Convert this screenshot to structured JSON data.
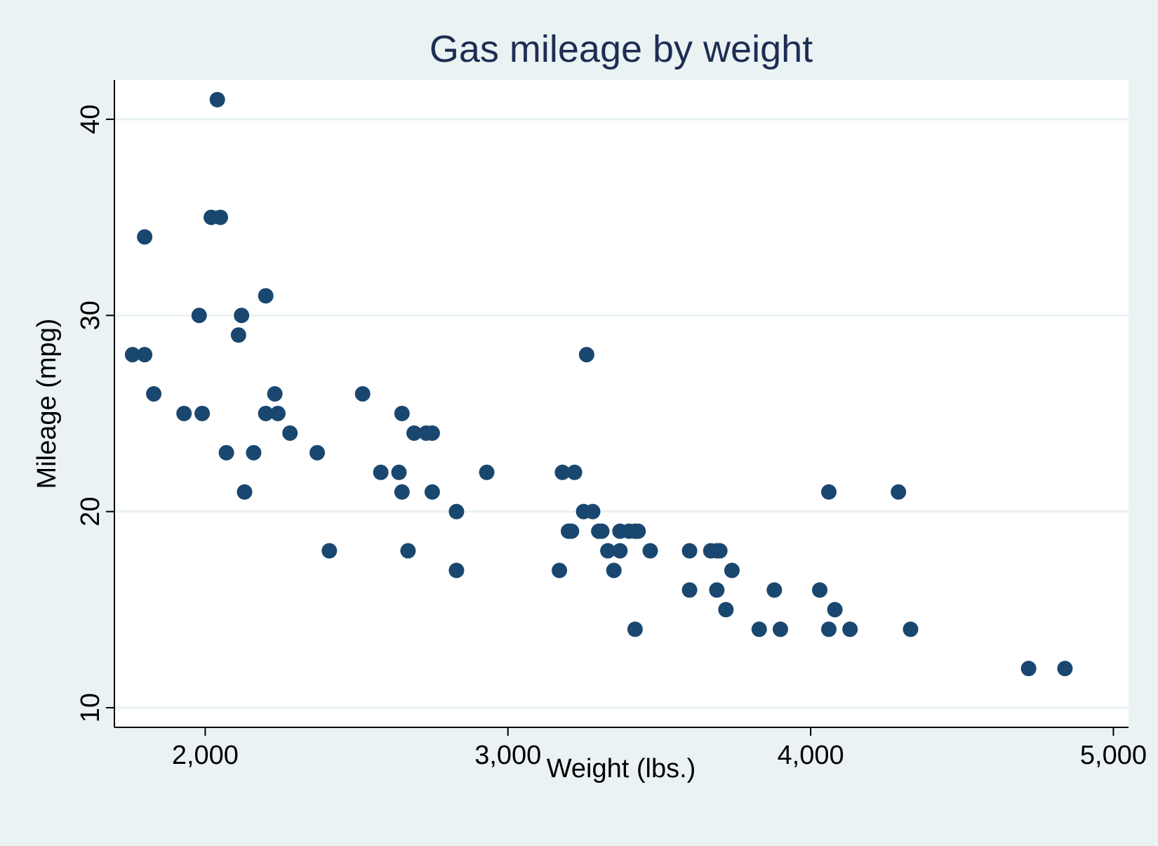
{
  "chart_data": {
    "type": "scatter",
    "title": "Gas mileage by weight",
    "xlabel": "Weight (lbs.)",
    "ylabel": "Mileage (mpg)",
    "xlim": [
      1700,
      5050
    ],
    "ylim": [
      9,
      42
    ],
    "xticks": [
      2000,
      3000,
      4000,
      5000
    ],
    "xtick_labels": [
      "2,000",
      "3,000",
      "4,000",
      "5,000"
    ],
    "yticks": [
      10,
      20,
      30,
      40
    ],
    "ytick_labels": [
      "10",
      "20",
      "30",
      "40"
    ],
    "grid": "horizontal",
    "legend": "none",
    "colors": {
      "background": "#eaf2f3",
      "plot_area": "#ffffff",
      "marker": "#1a476f",
      "title": "#1e2d53",
      "gridline": "#eaf2f3",
      "axis": "#000000"
    },
    "points": [
      {
        "x": 1760,
        "y": 28
      },
      {
        "x": 1800,
        "y": 28
      },
      {
        "x": 1800,
        "y": 34
      },
      {
        "x": 1830,
        "y": 26
      },
      {
        "x": 1930,
        "y": 25
      },
      {
        "x": 1980,
        "y": 30
      },
      {
        "x": 1990,
        "y": 25
      },
      {
        "x": 2020,
        "y": 35
      },
      {
        "x": 2040,
        "y": 41
      },
      {
        "x": 2050,
        "y": 35
      },
      {
        "x": 2070,
        "y": 23
      },
      {
        "x": 2110,
        "y": 29
      },
      {
        "x": 2120,
        "y": 30
      },
      {
        "x": 2130,
        "y": 21
      },
      {
        "x": 2160,
        "y": 23
      },
      {
        "x": 2200,
        "y": 25
      },
      {
        "x": 2200,
        "y": 31
      },
      {
        "x": 2230,
        "y": 26
      },
      {
        "x": 2240,
        "y": 25
      },
      {
        "x": 2280,
        "y": 24
      },
      {
        "x": 2370,
        "y": 23
      },
      {
        "x": 2410,
        "y": 18
      },
      {
        "x": 2520,
        "y": 26
      },
      {
        "x": 2580,
        "y": 22
      },
      {
        "x": 2640,
        "y": 22
      },
      {
        "x": 2650,
        "y": 21
      },
      {
        "x": 2650,
        "y": 25
      },
      {
        "x": 2670,
        "y": 18
      },
      {
        "x": 2690,
        "y": 24
      },
      {
        "x": 2730,
        "y": 24
      },
      {
        "x": 2750,
        "y": 24
      },
      {
        "x": 2750,
        "y": 21
      },
      {
        "x": 2830,
        "y": 20
      },
      {
        "x": 2830,
        "y": 17
      },
      {
        "x": 2930,
        "y": 22
      },
      {
        "x": 3170,
        "y": 17
      },
      {
        "x": 3180,
        "y": 22
      },
      {
        "x": 3200,
        "y": 19
      },
      {
        "x": 3210,
        "y": 19
      },
      {
        "x": 3220,
        "y": 22
      },
      {
        "x": 3250,
        "y": 20
      },
      {
        "x": 3260,
        "y": 28
      },
      {
        "x": 3280,
        "y": 20
      },
      {
        "x": 3300,
        "y": 19
      },
      {
        "x": 3310,
        "y": 19
      },
      {
        "x": 3330,
        "y": 18
      },
      {
        "x": 3350,
        "y": 17
      },
      {
        "x": 3370,
        "y": 19
      },
      {
        "x": 3370,
        "y": 18
      },
      {
        "x": 3400,
        "y": 19
      },
      {
        "x": 3420,
        "y": 19
      },
      {
        "x": 3420,
        "y": 14
      },
      {
        "x": 3430,
        "y": 19
      },
      {
        "x": 3470,
        "y": 18
      },
      {
        "x": 3600,
        "y": 18
      },
      {
        "x": 3600,
        "y": 16
      },
      {
        "x": 3670,
        "y": 18
      },
      {
        "x": 3690,
        "y": 16
      },
      {
        "x": 3690,
        "y": 18
      },
      {
        "x": 3700,
        "y": 18
      },
      {
        "x": 3720,
        "y": 15
      },
      {
        "x": 3740,
        "y": 17
      },
      {
        "x": 3830,
        "y": 14
      },
      {
        "x": 3880,
        "y": 16
      },
      {
        "x": 3900,
        "y": 14
      },
      {
        "x": 4030,
        "y": 16
      },
      {
        "x": 4060,
        "y": 21
      },
      {
        "x": 4060,
        "y": 14
      },
      {
        "x": 4080,
        "y": 15
      },
      {
        "x": 4130,
        "y": 14
      },
      {
        "x": 4290,
        "y": 21
      },
      {
        "x": 4330,
        "y": 14
      },
      {
        "x": 4720,
        "y": 12
      },
      {
        "x": 4840,
        "y": 12
      }
    ]
  }
}
